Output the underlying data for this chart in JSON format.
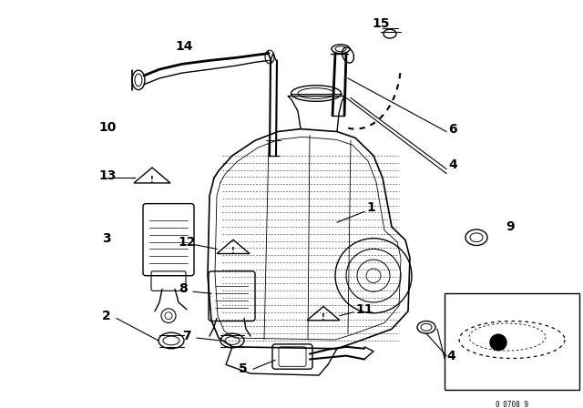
{
  "bg_color": "#ffffff",
  "line_color": "#000000",
  "label_fontsize": 10,
  "diagram_code": "0_0708_9",
  "figsize": [
    6.4,
    4.48
  ],
  "dpi": 100
}
